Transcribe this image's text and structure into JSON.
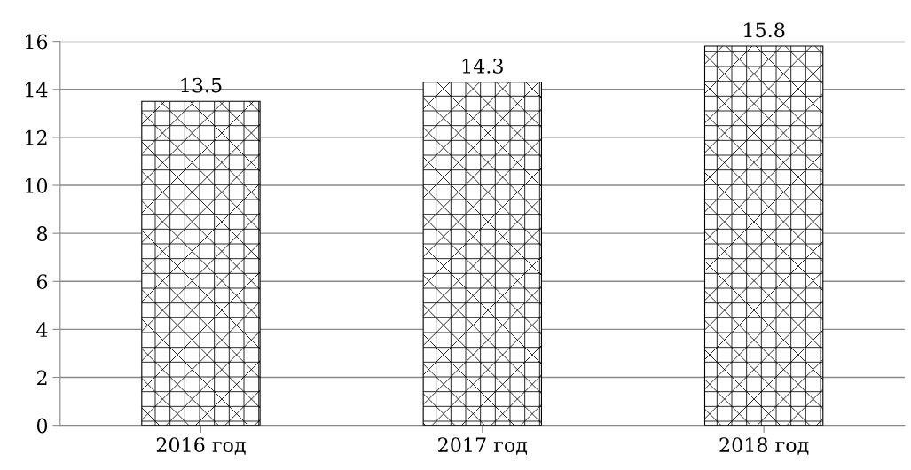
{
  "chart_data": {
    "type": "bar",
    "categories": [
      "2016 год",
      "2017 год",
      "2018 год"
    ],
    "values": [
      13.5,
      14.3,
      15.8
    ],
    "color": "#000000",
    "ylim": [
      0,
      16
    ],
    "yticks": [
      0,
      2,
      4,
      6,
      8,
      10,
      12,
      14,
      16
    ],
    "grid": "y",
    "data_labels": true
  }
}
